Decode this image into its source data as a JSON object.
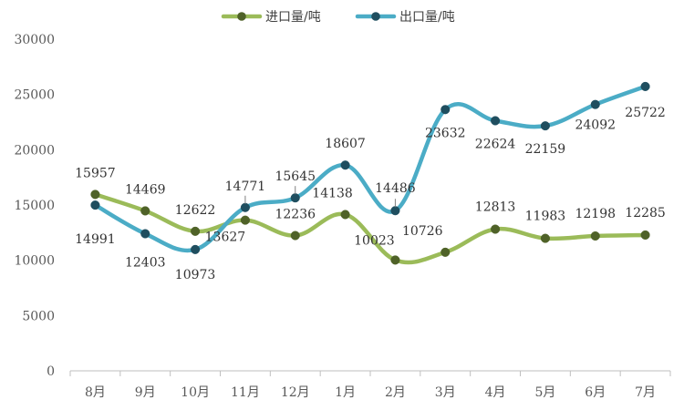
{
  "chart_data": {
    "type": "line",
    "categories": [
      "8月",
      "9月",
      "10月",
      "11月",
      "12月",
      "1月",
      "2月",
      "3月",
      "4月",
      "5月",
      "6月",
      "7月"
    ],
    "series": [
      {
        "name": "进口量/吨",
        "color": "#9bbb59",
        "marker_color": "#4f6228",
        "values": [
          15957,
          14469,
          12622,
          13627,
          12236,
          14138,
          10023,
          10726,
          12813,
          11983,
          12198,
          12285
        ]
      },
      {
        "name": "出口量/吨",
        "color": "#4bacc6",
        "marker_color": "#1f4e5f",
        "values": [
          14991,
          12403,
          10973,
          14771,
          15645,
          18607,
          14486,
          23632,
          22624,
          22159,
          24092,
          25722
        ]
      }
    ],
    "yticks": [
      0,
      5000,
      10000,
      15000,
      20000,
      25000,
      30000
    ],
    "ylim": [
      0,
      30000
    ],
    "smooth": true,
    "grid": false,
    "legend_position": "top",
    "axis_color": "#bfbfbf"
  }
}
